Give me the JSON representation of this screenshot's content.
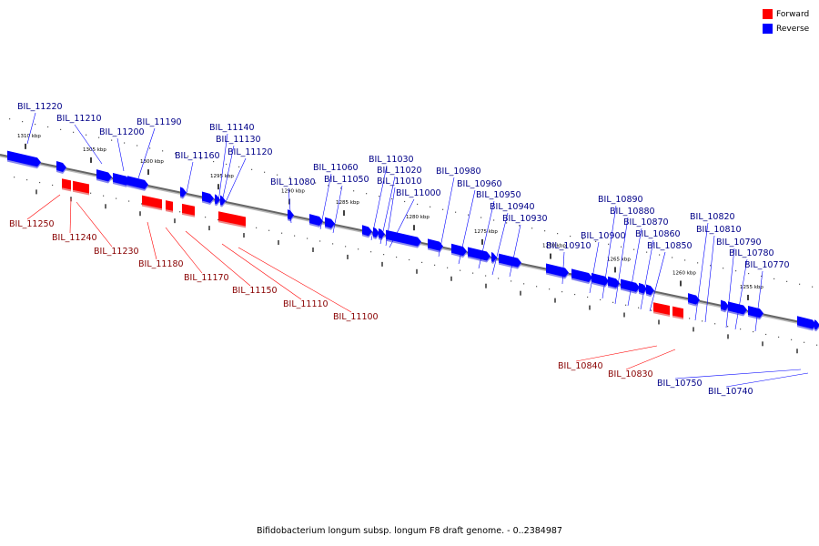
{
  "colors": {
    "forward": "#ff0000",
    "reverse": "#0000ff",
    "axis": "#888888",
    "tick": "#000000"
  },
  "legend": [
    {
      "label": "Forward",
      "strand": "forward"
    },
    {
      "label": "Reverse",
      "strand": "reverse"
    }
  ],
  "caption": "Bifidobacterium longum subsp. longum F8 draft genome. - 0..2384987",
  "scale_labels": [
    "1310 kbp",
    "1305 kbp",
    "1300 kbp",
    "1295 kbp",
    "1290 kbp",
    "1285 kbp",
    "1280 kbp",
    "1275 kbp",
    "1270 kbp",
    "1265 kbp",
    "1260 kbp",
    "1255 kbp"
  ],
  "reverse_genes": [
    "BIL_11220",
    "BIL_11210",
    "BIL_11200",
    "BIL_11190",
    "BIL_11160",
    "BIL_11140",
    "BIL_11130",
    "BIL_11120",
    "BIL_11080",
    "BIL_11060",
    "BIL_11050",
    "BIL_11030",
    "BIL_11020",
    "BIL_11010",
    "BIL_11000",
    "BIL_10980",
    "BIL_10960",
    "BIL_10950",
    "BIL_10940",
    "BIL_10930",
    "BIL_10910",
    "BIL_10900",
    "BIL_10890",
    "BIL_10880",
    "BIL_10870",
    "BIL_10860",
    "BIL_10850",
    "BIL_10820",
    "BIL_10810",
    "BIL_10790",
    "BIL_10780",
    "BIL_10770",
    "BIL_10750",
    "BIL_10740"
  ],
  "forward_genes": [
    "BIL_11250",
    "BIL_11240",
    "BIL_11230",
    "BIL_11180",
    "BIL_11170",
    "BIL_11150",
    "BIL_11110",
    "BIL_11100",
    "BIL_10840",
    "BIL_10830"
  ]
}
